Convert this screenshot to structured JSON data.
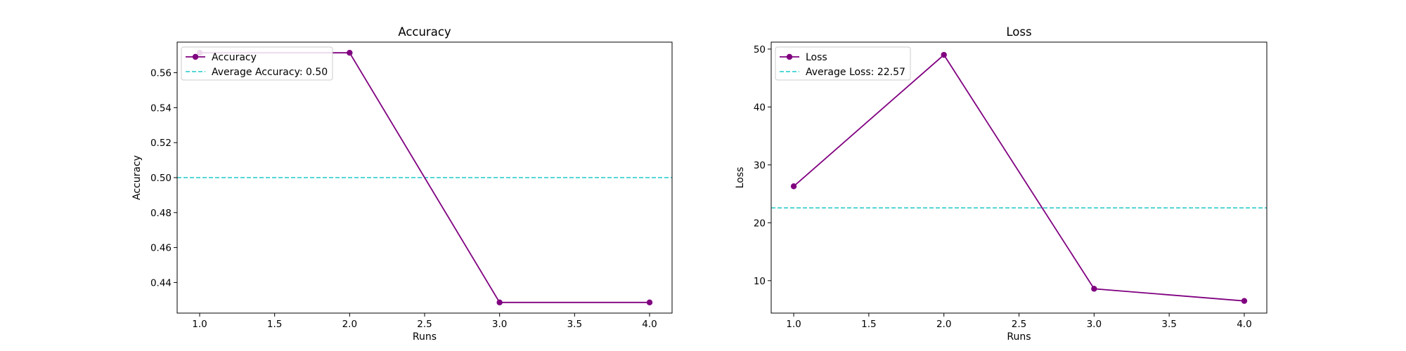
{
  "chart_data": [
    {
      "type": "line",
      "title": "Accuracy",
      "xlabel": "Runs",
      "ylabel": "Accuracy",
      "x": [
        1,
        2,
        3,
        4
      ],
      "xlim": [
        0.85,
        4.15
      ],
      "ylim": [
        0.4225,
        0.5775
      ],
      "xticks": [
        1.0,
        1.5,
        2.0,
        2.5,
        3.0,
        3.5,
        4.0
      ],
      "xtick_labels": [
        "1.0",
        "1.5",
        "2.0",
        "2.5",
        "3.0",
        "3.5",
        "4.0"
      ],
      "yticks": [
        0.44,
        0.46,
        0.48,
        0.5,
        0.52,
        0.54,
        0.56
      ],
      "ytick_labels": [
        "0.44",
        "0.46",
        "0.48",
        "0.50",
        "0.52",
        "0.54",
        "0.56"
      ],
      "series": [
        {
          "name": "Accuracy",
          "values": [
            0.5714,
            0.5714,
            0.4286,
            0.4286
          ],
          "color": "#800080",
          "marker": "circle"
        }
      ],
      "reference_lines": [
        {
          "name": "Average Accuracy: 0.50",
          "y": 0.5,
          "color": "#1fc8c8",
          "style": "dashed"
        }
      ],
      "legend": {
        "placement": "top-left"
      },
      "grid": false
    },
    {
      "type": "line",
      "title": "Loss",
      "xlabel": "Runs",
      "ylabel": "Loss",
      "x": [
        1,
        2,
        3,
        4
      ],
      "xlim": [
        0.85,
        4.15
      ],
      "ylim": [
        4.4,
        51.2
      ],
      "xticks": [
        1.0,
        1.5,
        2.0,
        2.5,
        3.0,
        3.5,
        4.0
      ],
      "xtick_labels": [
        "1.0",
        "1.5",
        "2.0",
        "2.5",
        "3.0",
        "3.5",
        "4.0"
      ],
      "yticks": [
        10,
        20,
        30,
        40,
        50
      ],
      "ytick_labels": [
        "10",
        "20",
        "30",
        "40",
        "50"
      ],
      "series": [
        {
          "name": "Loss",
          "values": [
            26.3,
            49.0,
            8.6,
            6.5
          ],
          "color": "#800080",
          "marker": "circle"
        }
      ],
      "reference_lines": [
        {
          "name": "Average Loss: 22.57",
          "y": 22.57,
          "color": "#1fc8c8",
          "style": "dashed"
        }
      ],
      "legend": {
        "placement": "top-left"
      },
      "grid": false
    }
  ]
}
